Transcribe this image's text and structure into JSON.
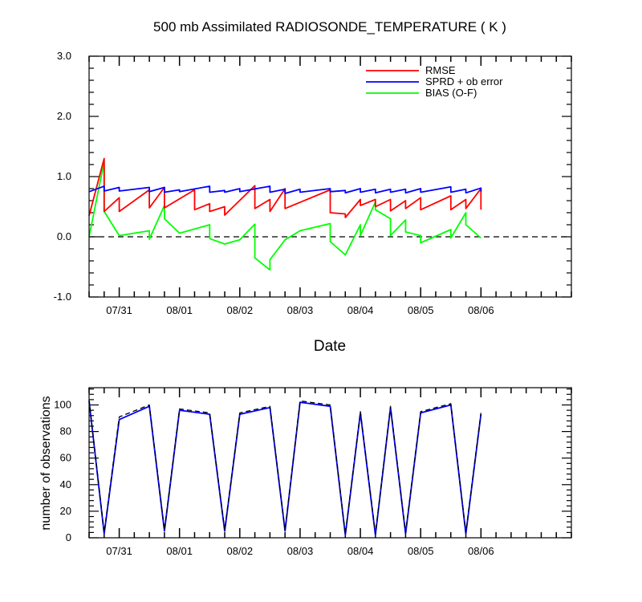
{
  "chart_data": [
    {
      "type": "line",
      "title": "500 mb Assimilated RADIOSONDE_TEMPERATURE ( K )",
      "xlabel": "Date",
      "ylabel": "",
      "xlim": [
        0,
        8
      ],
      "ylim": [
        -1.0,
        3.0
      ],
      "yticks": [
        -1.0,
        0.0,
        1.0,
        2.0,
        3.0
      ],
      "ytick_labels": [
        "-1.0",
        "0.0",
        "1.0",
        "2.0",
        "3.0"
      ],
      "date_ticks": [
        {
          "x": 0.5,
          "label": "07/31"
        },
        {
          "x": 1.5,
          "label": "08/01"
        },
        {
          "x": 2.5,
          "label": "08/02"
        },
        {
          "x": 3.5,
          "label": "08/03"
        },
        {
          "x": 4.5,
          "label": "08/04"
        },
        {
          "x": 5.5,
          "label": "08/05"
        },
        {
          "x": 6.5,
          "label": "08/06"
        }
      ],
      "zero_line": {
        "y": 0,
        "style": "dashed"
      },
      "legend_position": "top-right",
      "series": [
        {
          "name": "RMSE",
          "color": "#ff0000",
          "points": [
            [
              0,
              0.35
            ],
            [
              0.25,
              1.3
            ],
            [
              0.25,
              0.42
            ],
            [
              0.5,
              0.65
            ],
            [
              0.5,
              0.42
            ],
            [
              1.0,
              0.78
            ],
            [
              1.0,
              0.48
            ],
            [
              1.25,
              0.82
            ],
            [
              1.25,
              0.48
            ],
            [
              1.75,
              0.78
            ],
            [
              1.75,
              0.45
            ],
            [
              2.0,
              0.55
            ],
            [
              2.0,
              0.42
            ],
            [
              2.25,
              0.5
            ],
            [
              2.25,
              0.36
            ],
            [
              2.75,
              0.85
            ],
            [
              2.75,
              0.47
            ],
            [
              3.0,
              0.62
            ],
            [
              3.0,
              0.42
            ],
            [
              3.25,
              0.8
            ],
            [
              3.25,
              0.47
            ],
            [
              4.0,
              0.78
            ],
            [
              4.0,
              0.4
            ],
            [
              4.25,
              0.38
            ],
            [
              4.25,
              0.32
            ],
            [
              4.5,
              0.62
            ],
            [
              4.5,
              0.52
            ],
            [
              4.75,
              0.62
            ],
            [
              4.75,
              0.5
            ],
            [
              5.0,
              0.62
            ],
            [
              5.0,
              0.43
            ],
            [
              5.25,
              0.6
            ],
            [
              5.25,
              0.47
            ],
            [
              5.5,
              0.65
            ],
            [
              5.5,
              0.45
            ],
            [
              6.0,
              0.68
            ],
            [
              6.0,
              0.45
            ],
            [
              6.25,
              0.62
            ],
            [
              6.25,
              0.47
            ],
            [
              6.5,
              0.8
            ],
            [
              6.5,
              0.45
            ]
          ]
        },
        {
          "name": "SPRD + ob error",
          "color": "#0000ff",
          "points": [
            [
              0,
              0.75
            ],
            [
              0.25,
              0.84
            ],
            [
              0.25,
              0.76
            ],
            [
              0.5,
              0.82
            ],
            [
              0.5,
              0.76
            ],
            [
              1.0,
              0.82
            ],
            [
              1.0,
              0.75
            ],
            [
              1.25,
              0.82
            ],
            [
              1.25,
              0.74
            ],
            [
              1.5,
              0.78
            ],
            [
              1.5,
              0.75
            ],
            [
              2.0,
              0.84
            ],
            [
              2.0,
              0.74
            ],
            [
              2.25,
              0.77
            ],
            [
              2.25,
              0.74
            ],
            [
              2.5,
              0.8
            ],
            [
              2.5,
              0.75
            ],
            [
              3.0,
              0.84
            ],
            [
              3.0,
              0.74
            ],
            [
              3.25,
              0.79
            ],
            [
              3.25,
              0.72
            ],
            [
              3.5,
              0.79
            ],
            [
              3.5,
              0.74
            ],
            [
              4.0,
              0.8
            ],
            [
              4.0,
              0.75
            ],
            [
              4.25,
              0.77
            ],
            [
              4.25,
              0.73
            ],
            [
              4.5,
              0.8
            ],
            [
              4.5,
              0.74
            ],
            [
              4.75,
              0.79
            ],
            [
              4.75,
              0.73
            ],
            [
              5.0,
              0.79
            ],
            [
              5.0,
              0.74
            ],
            [
              5.25,
              0.79
            ],
            [
              5.25,
              0.73
            ],
            [
              5.5,
              0.8
            ],
            [
              5.5,
              0.74
            ],
            [
              6.0,
              0.83
            ],
            [
              6.0,
              0.74
            ],
            [
              6.25,
              0.79
            ],
            [
              6.25,
              0.73
            ],
            [
              6.5,
              0.81
            ],
            [
              6.5,
              0.75
            ]
          ]
        },
        {
          "name": "BIAS (O-F)",
          "color": "#00ff00",
          "points": [
            [
              0,
              0.0
            ],
            [
              0.25,
              1.25
            ],
            [
              0.25,
              0.42
            ],
            [
              0.5,
              0.02
            ],
            [
              1.0,
              0.1
            ],
            [
              1.0,
              -0.04
            ],
            [
              1.25,
              0.52
            ],
            [
              1.25,
              0.3
            ],
            [
              1.5,
              0.06
            ],
            [
              2.0,
              0.2
            ],
            [
              2.0,
              -0.03
            ],
            [
              2.25,
              -0.12
            ],
            [
              2.5,
              -0.05
            ],
            [
              2.75,
              0.21
            ],
            [
              2.75,
              -0.35
            ],
            [
              3.0,
              -0.55
            ],
            [
              3.0,
              -0.38
            ],
            [
              3.25,
              -0.05
            ],
            [
              3.5,
              0.1
            ],
            [
              4.0,
              0.22
            ],
            [
              4.0,
              -0.08
            ],
            [
              4.25,
              -0.3
            ],
            [
              4.5,
              0.2
            ],
            [
              4.5,
              0.02
            ],
            [
              4.75,
              0.58
            ],
            [
              4.75,
              0.45
            ],
            [
              5.0,
              0.3
            ],
            [
              5.0,
              0.02
            ],
            [
              5.25,
              0.28
            ],
            [
              5.25,
              0.08
            ],
            [
              5.5,
              0.02
            ],
            [
              5.5,
              -0.1
            ],
            [
              6.0,
              0.12
            ],
            [
              6.0,
              -0.02
            ],
            [
              6.25,
              0.4
            ],
            [
              6.25,
              0.2
            ],
            [
              6.5,
              -0.02
            ]
          ]
        }
      ]
    },
    {
      "type": "line",
      "title": "",
      "xlabel": "",
      "ylabel": "number of observations",
      "xlim": [
        0,
        8
      ],
      "ylim": [
        0,
        113
      ],
      "yticks": [
        0,
        20,
        40,
        60,
        80,
        100
      ],
      "ytick_labels": [
        "0",
        "20",
        "40",
        "60",
        "80",
        "100"
      ],
      "date_ticks": [
        {
          "x": 0.5,
          "label": "07/31"
        },
        {
          "x": 1.5,
          "label": "08/01"
        },
        {
          "x": 2.5,
          "label": "08/02"
        },
        {
          "x": 3.5,
          "label": "08/03"
        },
        {
          "x": 4.5,
          "label": "08/04"
        },
        {
          "x": 5.5,
          "label": "08/05"
        },
        {
          "x": 6.5,
          "label": "08/06"
        }
      ],
      "series": [
        {
          "color": "#0000ff",
          "style": "solid",
          "x": [
            0,
            0.25,
            0.5,
            1.0,
            1.25,
            1.5,
            2.0,
            2.25,
            2.5,
            3.0,
            3.25,
            3.5,
            4.0,
            4.25,
            4.5,
            4.75,
            5.0,
            5.25,
            5.5,
            6.0,
            6.25,
            6.5
          ],
          "y": [
            103,
            3,
            89,
            99,
            5,
            96,
            93,
            5,
            93,
            98,
            5,
            102,
            99,
            2,
            94,
            2,
            98,
            3,
            94,
            100,
            3,
            93
          ]
        },
        {
          "color": "#000000",
          "style": "dashed",
          "x": [
            0,
            0.25,
            0.5,
            1.0,
            1.25,
            1.5,
            2.0,
            2.25,
            2.5,
            3.0,
            3.25,
            3.5,
            4.0,
            4.25,
            4.5,
            4.75,
            5.0,
            5.25,
            5.5,
            6.0,
            6.25,
            6.5
          ],
          "y": [
            104,
            4,
            91,
            100,
            6,
            97,
            94,
            6,
            94,
            99,
            6,
            103,
            100,
            3,
            95,
            3,
            99,
            4,
            95,
            101,
            4,
            94
          ]
        }
      ]
    }
  ]
}
